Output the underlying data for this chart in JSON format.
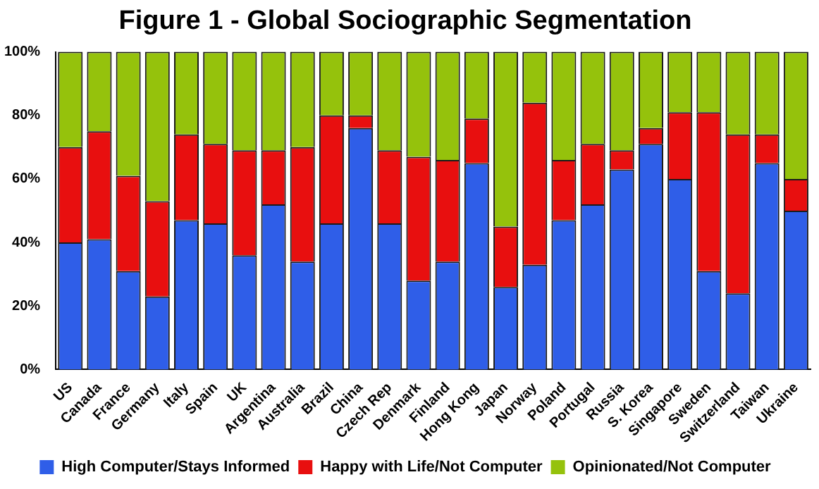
{
  "chart_data": {
    "type": "bar",
    "stacked": true,
    "title": "Figure 1 - Global Sociographic Segmentation",
    "categories": [
      "US",
      "Canada",
      "France",
      "Germany",
      "Italy",
      "Spain",
      "UK",
      "Argentina",
      "Australia",
      "Brazil",
      "China",
      "Czech Rep",
      "Denmark",
      "Finland",
      "Hong Kong",
      "Japan",
      "Norway",
      "Poland",
      "Portugal",
      "Russia",
      "S. Korea",
      "Singapore",
      "Sweden",
      "Switzerland",
      "Taiwan",
      "Ukraine"
    ],
    "series": [
      {
        "name": "High Computer/Stays Informed",
        "color": "#2f5ee8",
        "values": [
          40,
          41,
          31,
          23,
          47,
          46,
          36,
          52,
          34,
          46,
          76,
          46,
          28,
          34,
          65,
          26,
          33,
          47,
          52,
          63,
          71,
          60,
          31,
          24,
          65,
          50
        ]
      },
      {
        "name": "Happy with Life/Not Computer",
        "color": "#e80f0f",
        "values": [
          30,
          34,
          30,
          30,
          27,
          25,
          33,
          17,
          36,
          34,
          4,
          23,
          39,
          32,
          14,
          19,
          51,
          19,
          19,
          6,
          5,
          21,
          50,
          50,
          9,
          10
        ]
      },
      {
        "name": "Opinionated/Not Computer",
        "color": "#95c20c",
        "values": [
          30,
          25,
          39,
          47,
          26,
          29,
          31,
          31,
          30,
          20,
          20,
          31,
          33,
          34,
          21,
          55,
          16,
          34,
          29,
          31,
          24,
          19,
          19,
          26,
          26,
          40
        ]
      }
    ],
    "ylim": [
      0,
      100
    ],
    "yticks": [
      {
        "value": 0,
        "label": "0%"
      },
      {
        "value": 20,
        "label": "20%"
      },
      {
        "value": 40,
        "label": "40%"
      },
      {
        "value": 60,
        "label": "60%"
      },
      {
        "value": 80,
        "label": "80%"
      },
      {
        "value": 100,
        "label": "100%"
      }
    ],
    "grid": false,
    "legend": "bottom"
  }
}
